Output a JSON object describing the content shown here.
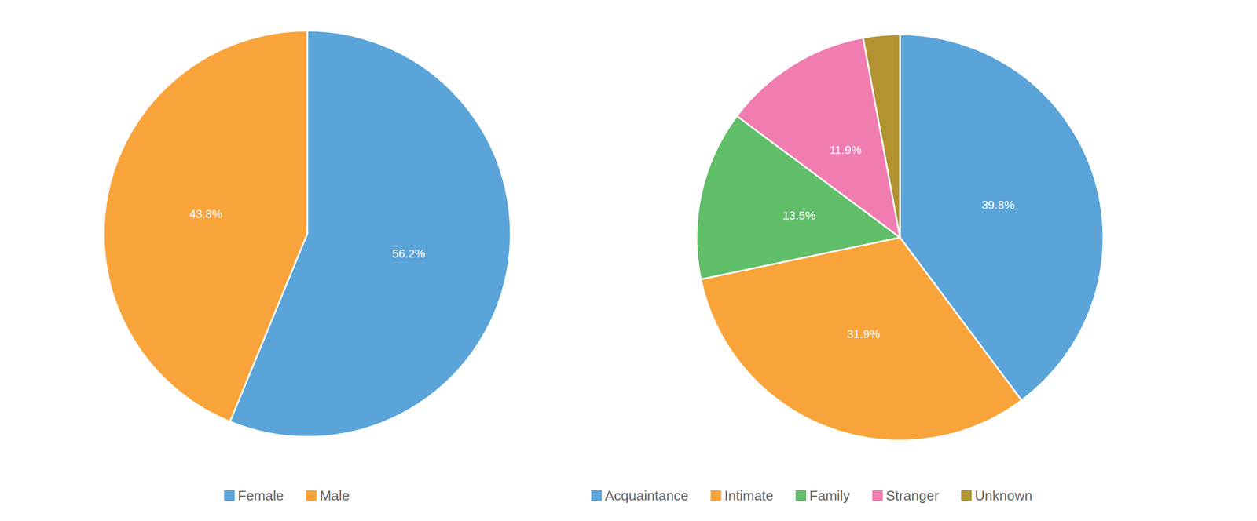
{
  "chart_data": [
    {
      "type": "pie",
      "categories": [
        "Female",
        "Male"
      ],
      "values": [
        56.2,
        43.8
      ],
      "value_labels": [
        "56.2%",
        "43.8%"
      ],
      "colors": [
        "#5aa4da",
        "#f9a43a"
      ],
      "data_labels": true,
      "legend": "bottom"
    },
    {
      "type": "pie",
      "categories": [
        "Acquaintance",
        "Intimate",
        "Family",
        "Stranger",
        "Unknown"
      ],
      "values": [
        39.8,
        31.9,
        13.5,
        11.9,
        2.9
      ],
      "value_labels": [
        "39.8%",
        "31.9%",
        "13.5%",
        "11.9%",
        null
      ],
      "colors": [
        "#5aa4da",
        "#f9a43a",
        "#60be68",
        "#f07cb0",
        "#b2932f"
      ],
      "data_labels": true,
      "legend": "bottom"
    }
  ]
}
